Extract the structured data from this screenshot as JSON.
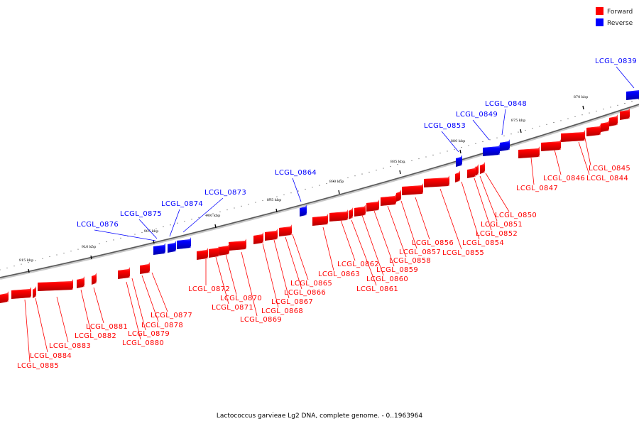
{
  "legend": {
    "items": [
      {
        "label": "Forward",
        "color": "#ff0000"
      },
      {
        "label": "Reverse",
        "color": "#0000ff"
      }
    ]
  },
  "caption": "Lactococcus garvieae Lg2 DNA, complete genome. - 0..1963964",
  "scale_ticks": [
    "870 kbp",
    "875 kbp",
    "880 kbp",
    "885 kbp",
    "890 kbp",
    "895 kbp",
    "900 kbp",
    "905 kbp",
    "910 kbp",
    "915 kbp"
  ],
  "genes": {
    "forward": [
      "LCGL_0844",
      "LCGL_0845",
      "LCGL_0846",
      "LCGL_0847",
      "LCGL_0850",
      "LCGL_0851",
      "LCGL_0852",
      "LCGL_0854",
      "LCGL_0855",
      "LCGL_0856",
      "LCGL_0857",
      "LCGL_0858",
      "LCGL_0859",
      "LCGL_0860",
      "LCGL_0861",
      "LCGL_0862",
      "LCGL_0863",
      "LCGL_0865",
      "LCGL_0866",
      "LCGL_0867",
      "LCGL_0868",
      "LCGL_0869",
      "LCGL_0870",
      "LCGL_0871",
      "LCGL_0872",
      "LCGL_0877",
      "LCGL_0878",
      "LCGL_0879",
      "LCGL_0880",
      "LCGL_0881",
      "LCGL_0882",
      "LCGL_0883",
      "LCGL_0884",
      "LCGL_0885"
    ],
    "reverse": [
      "LCGL_0839",
      "LCGL_0848",
      "LCGL_0849",
      "LCGL_0853",
      "LCGL_0864",
      "LCGL_0873",
      "LCGL_0874",
      "LCGL_0875",
      "LCGL_0876"
    ]
  }
}
